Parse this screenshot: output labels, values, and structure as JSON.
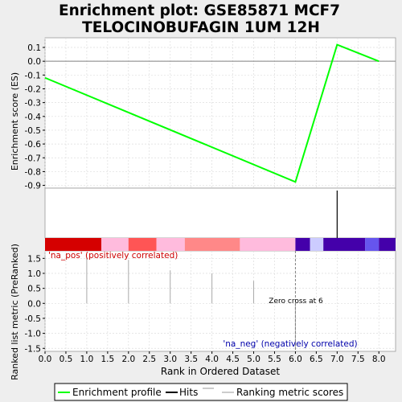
{
  "colors": {
    "background": "#eeeeee",
    "panel": "#ffffff",
    "es_line": "#00ff00",
    "hits": "#000000",
    "metric_bars": "#aaaaaa",
    "zero_line": "#808080",
    "grid": "#dddddd",
    "pos_label": "#cc0000",
    "neg_label": "#0000aa",
    "legend_border": "#000000"
  },
  "chart_data": [
    {
      "type": "line",
      "panel": "enrichment",
      "title": "Enrichment plot: GSE85871 MCF7 TELOCINOBUFAGIN 1UM 12H",
      "title_lines": [
        "Enrichment plot: GSE85871 MCF7",
        "TELOCINOBUFAGIN 1UM 12H"
      ],
      "ylabel": "Enrichment score (ES)",
      "xlim": [
        0.0,
        8.4
      ],
      "ylim": [
        -0.92,
        0.17
      ],
      "yticks": [
        0.1,
        0.0,
        -0.1,
        -0.2,
        -0.3,
        -0.4,
        -0.5,
        -0.6,
        -0.7,
        -0.8,
        -0.9
      ],
      "ytick_labels": [
        "0.1",
        "0.0",
        "-0.1",
        "-0.2",
        "-0.3",
        "-0.4",
        "-0.5",
        "-0.6",
        "-0.7",
        "-0.8",
        "-0.9"
      ],
      "series": [
        {
          "name": "Enrichment profile",
          "x": [
            0,
            6,
            7,
            8
          ],
          "y": [
            -0.12,
            -0.875,
            0.12,
            0.0
          ]
        }
      ],
      "grid": true
    },
    {
      "type": "bar",
      "panel": "hits",
      "series": [
        {
          "name": "Hits",
          "x": [
            7
          ]
        }
      ],
      "color_band": [
        {
          "from": 0.0,
          "to": 1.35,
          "color": "#d50000"
        },
        {
          "from": 1.35,
          "to": 2.0,
          "color": "#ffbbdd"
        },
        {
          "from": 2.0,
          "to": 2.67,
          "color": "#ff5555"
        },
        {
          "from": 2.67,
          "to": 3.35,
          "color": "#ffbbdd"
        },
        {
          "from": 3.35,
          "to": 4.67,
          "color": "#ff8888"
        },
        {
          "from": 4.67,
          "to": 6.0,
          "color": "#ffbbdd"
        },
        {
          "from": 6.0,
          "to": 6.35,
          "color": "#4400aa"
        },
        {
          "from": 6.35,
          "to": 6.67,
          "color": "#ccccff"
        },
        {
          "from": 6.67,
          "to": 7.67,
          "color": "#4400aa"
        },
        {
          "from": 7.67,
          "to": 8.0,
          "color": "#6655ee"
        },
        {
          "from": 8.0,
          "to": 8.4,
          "color": "#4400aa"
        }
      ]
    },
    {
      "type": "bar",
      "panel": "ranked_list",
      "xlabel": "Rank in Ordered Dataset",
      "ylabel": "Ranked list metric (PreRanked)",
      "xlim": [
        0.0,
        8.4
      ],
      "ylim": [
        -1.6,
        1.75
      ],
      "xticks": [
        0.0,
        0.5,
        1.0,
        1.5,
        2.0,
        2.5,
        3.0,
        3.5,
        4.0,
        4.5,
        5.0,
        5.5,
        6.0,
        6.5,
        7.0,
        7.5,
        8.0
      ],
      "xtick_labels": [
        "0.0",
        "0.5",
        "1.0",
        "1.5",
        "2.0",
        "2.5",
        "3.0",
        "3.5",
        "4.0",
        "4.5",
        "5.0",
        "5.5",
        "6.0",
        "6.5",
        "7.0",
        "7.5",
        "8.0"
      ],
      "yticks": [
        1.5,
        1.0,
        0.5,
        0.0,
        -0.5,
        -1.0,
        -1.5
      ],
      "ytick_labels": [
        "1.5",
        "1.0",
        "0.5",
        "0.0",
        "-0.5",
        "-1.0",
        "-1.5"
      ],
      "series": [
        {
          "name": "Ranking metric scores",
          "x": [
            0,
            1,
            2,
            3,
            4,
            5,
            6,
            7,
            8
          ],
          "values": [
            1.6,
            1.55,
            1.45,
            1.1,
            1.0,
            0.75,
            -1.55,
            0.0,
            0.0
          ]
        }
      ],
      "zero_cross_x": 6,
      "annotations": {
        "pos": "'na_pos' (positively correlated)",
        "neg": "'na_neg' (negatively correlated)",
        "zero_cross": "Zero cross at 6"
      },
      "grid": true
    }
  ],
  "legend": {
    "items": [
      {
        "label": "Enrichment profile",
        "color": "#00ff00",
        "style": "es"
      },
      {
        "label": "Hits",
        "color": "#000000",
        "style": "hit"
      },
      {
        "label": "Ranking metric scores",
        "color": "#aaaaaa",
        "style": "metric"
      }
    ]
  }
}
